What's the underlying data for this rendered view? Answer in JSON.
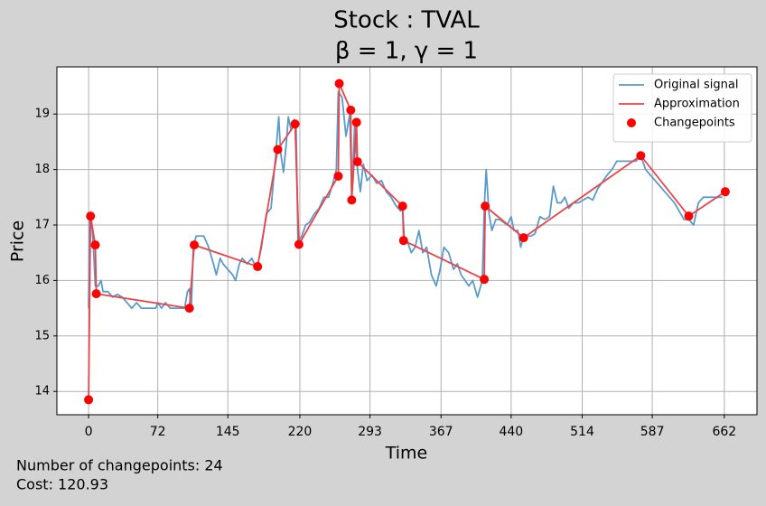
{
  "chart_data": {
    "type": "line",
    "title": "Stock : TVAL",
    "subtitle": "β = 1, γ = 1",
    "xlabel": "Time",
    "ylabel": "Price",
    "annotations": [
      "Number of changepoints: 24",
      "Cost: 120.93"
    ],
    "xlim": [
      -33,
      696
    ],
    "ylim": [
      13.58,
      19.85
    ],
    "xticks": [
      0,
      72,
      145,
      220,
      293,
      367,
      440,
      514,
      587,
      662
    ],
    "yticks": [
      14,
      15,
      16,
      17,
      18,
      19
    ],
    "grid": true,
    "legend": "upper right",
    "series": [
      {
        "name": "Original signal",
        "mode": "line",
        "color": "#5b9bcb",
        "x": [
          0,
          1,
          3,
          5,
          7,
          10,
          13,
          15,
          20,
          25,
          30,
          35,
          40,
          45,
          50,
          55,
          60,
          70,
          72,
          76,
          80,
          85,
          95,
          100,
          103,
          105,
          107,
          109,
          112,
          115,
          120,
          125,
          130,
          133,
          137,
          140,
          145,
          150,
          153,
          157,
          160,
          165,
          170,
          175,
          180,
          185,
          190,
          195,
          198,
          200,
          203,
          206,
          208,
          211,
          214,
          216,
          218,
          222,
          226,
          230,
          235,
          240,
          245,
          250,
          255,
          258,
          260,
          264,
          268,
          272,
          274,
          277,
          280,
          283,
          286,
          290,
          295,
          300,
          305,
          310,
          315,
          320,
          325,
          327,
          329,
          332,
          336,
          340,
          344,
          348,
          352,
          357,
          362,
          366,
          370,
          375,
          380,
          384,
          388,
          392,
          396,
          400,
          405,
          410,
          412,
          414,
          417,
          420,
          424,
          428,
          432,
          436,
          440,
          443,
          447,
          450,
          453,
          457,
          461,
          465,
          470,
          475,
          480,
          484,
          488,
          492,
          496,
          500,
          505,
          510,
          515,
          520,
          525,
          530,
          540,
          545,
          550,
          560,
          570,
          575,
          580,
          590,
          600,
          610,
          620,
          625,
          630,
          635,
          640,
          650,
          660
        ],
        "values": [
          15.5,
          17.1,
          17.1,
          16.6,
          15.9,
          15.9,
          16.0,
          15.8,
          15.8,
          15.7,
          15.75,
          15.7,
          15.6,
          15.5,
          15.6,
          15.5,
          15.5,
          15.5,
          15.6,
          15.5,
          15.6,
          15.5,
          15.5,
          15.5,
          15.8,
          15.85,
          15.5,
          16.6,
          16.8,
          16.8,
          16.8,
          16.6,
          16.3,
          16.1,
          16.4,
          16.3,
          16.2,
          16.1,
          16.0,
          16.3,
          16.4,
          16.3,
          16.4,
          16.2,
          16.6,
          17.2,
          17.3,
          18.3,
          18.95,
          18.3,
          17.95,
          18.5,
          18.95,
          18.7,
          18.9,
          18.85,
          16.7,
          16.8,
          17.0,
          17.05,
          17.2,
          17.3,
          17.5,
          17.5,
          17.8,
          18.0,
          19.4,
          19.3,
          18.6,
          19.0,
          17.5,
          18.8,
          18.0,
          17.6,
          18.1,
          17.8,
          17.9,
          17.75,
          17.8,
          17.6,
          17.5,
          17.35,
          17.25,
          17.3,
          16.7,
          16.7,
          16.5,
          16.6,
          16.9,
          16.5,
          16.6,
          16.1,
          15.9,
          16.2,
          16.6,
          16.5,
          16.2,
          16.3,
          16.1,
          16.0,
          15.9,
          16.0,
          15.7,
          16.0,
          17.3,
          18.0,
          17.2,
          16.9,
          17.1,
          17.1,
          17.05,
          17.0,
          17.15,
          16.9,
          16.9,
          16.6,
          16.8,
          16.8,
          16.8,
          16.85,
          17.15,
          17.1,
          17.15,
          17.7,
          17.4,
          17.4,
          17.5,
          17.3,
          17.4,
          17.4,
          17.45,
          17.5,
          17.45,
          17.65,
          17.9,
          18.0,
          18.15,
          18.15,
          18.15,
          18.25,
          18.0,
          17.8,
          17.6,
          17.4,
          17.1,
          17.1,
          17.0,
          17.4,
          17.5,
          17.5,
          17.5
        ]
      },
      {
        "name": "Approximation",
        "mode": "line",
        "color": "#e8454a",
        "x": [
          0,
          2,
          7,
          8,
          105,
          110,
          176,
          197,
          215,
          219,
          260,
          261,
          273,
          274,
          279,
          280,
          327,
          328,
          412,
          413,
          453,
          575,
          625,
          663
        ],
        "values": [
          13.85,
          17.16,
          16.64,
          15.76,
          15.5,
          16.64,
          16.25,
          18.36,
          18.82,
          16.65,
          17.88,
          19.55,
          19.07,
          17.45,
          18.85,
          18.14,
          17.34,
          16.72,
          16.02,
          17.34,
          16.77,
          18.25,
          17.16,
          17.6
        ]
      },
      {
        "name": "Changepoints",
        "mode": "markers",
        "color": "#ff0000",
        "x": [
          0,
          2,
          7,
          8,
          105,
          110,
          176,
          197,
          215,
          219,
          260,
          261,
          273,
          274,
          279,
          280,
          327,
          328,
          412,
          413,
          453,
          575,
          625,
          663
        ],
        "values": [
          13.85,
          17.16,
          16.64,
          15.76,
          15.5,
          16.64,
          16.25,
          18.36,
          18.82,
          16.65,
          17.88,
          19.55,
          19.07,
          17.45,
          18.85,
          18.14,
          17.34,
          16.72,
          16.02,
          17.34,
          16.77,
          18.25,
          17.16,
          17.6
        ]
      }
    ]
  }
}
